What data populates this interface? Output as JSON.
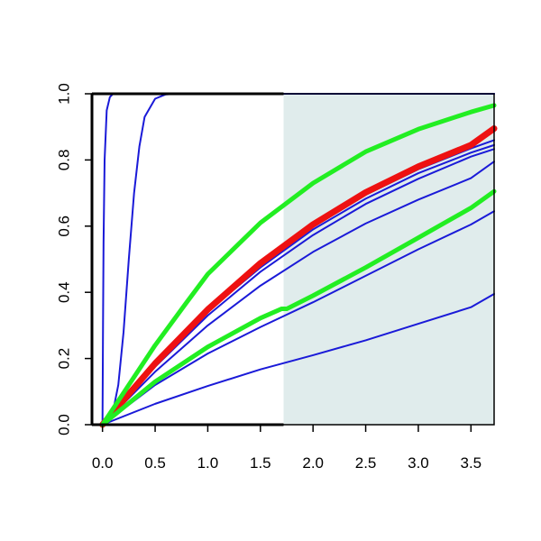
{
  "chart_data": {
    "type": "line",
    "title": "",
    "xlabel": "",
    "ylabel": "",
    "xlim": [
      -0.1,
      3.72
    ],
    "ylim": [
      0.0,
      1.0
    ],
    "x_ticks": [
      "0.0",
      "0.5",
      "1.0",
      "1.5",
      "2.0",
      "2.5",
      "3.0",
      "3.5"
    ],
    "x_tick_values": [
      0.0,
      0.5,
      1.0,
      1.5,
      2.0,
      2.5,
      3.0,
      3.5
    ],
    "y_ticks": [
      "0.0",
      "0.2",
      "0.4",
      "0.6",
      "0.8",
      "1.0"
    ],
    "y_tick_values": [
      0.0,
      0.2,
      0.4,
      0.6,
      0.8,
      1.0
    ],
    "grid": false,
    "shaded_region": {
      "x_start": 1.72,
      "x_end": 3.72,
      "color": "#e0ecec"
    },
    "colors": {
      "blue": "#1a1ad8",
      "red": "#ee1111",
      "green": "#22ee22",
      "axis": "#000000"
    },
    "series": [
      {
        "color": "blue",
        "x": [
          0,
          0.005,
          0.01,
          0.02,
          0.04,
          0.07,
          0.1,
          0.2,
          3.72
        ],
        "y": [
          0.0,
          0.3,
          0.55,
          0.8,
          0.95,
          0.99,
          1.0,
          1.0,
          1.0
        ]
      },
      {
        "color": "blue",
        "x": [
          0,
          0.05,
          0.1,
          0.15,
          0.2,
          0.25,
          0.3,
          0.35,
          0.4,
          0.5,
          0.6,
          0.7,
          3.72
        ],
        "y": [
          0.0,
          0.01,
          0.04,
          0.12,
          0.28,
          0.5,
          0.7,
          0.84,
          0.93,
          0.985,
          0.998,
          1.0,
          1.0
        ]
      },
      {
        "color": "blue",
        "x": [
          0,
          0.5,
          1.0,
          1.5,
          2.0,
          2.5,
          3.0,
          3.5,
          3.72
        ],
        "y": [
          0.0,
          0.182,
          0.343,
          0.475,
          0.59,
          0.683,
          0.76,
          0.822,
          0.845
        ]
      },
      {
        "color": "blue",
        "x": [
          0,
          0.5,
          1.0,
          1.5,
          2.0,
          2.5,
          3.0,
          3.5,
          3.72
        ],
        "y": [
          0.0,
          0.175,
          0.33,
          0.462,
          0.573,
          0.667,
          0.743,
          0.81,
          0.833
        ]
      },
      {
        "color": "blue",
        "x": [
          0,
          0.5,
          1.0,
          1.5,
          2.0,
          2.5,
          3.0,
          3.5,
          3.72
        ],
        "y": [
          0.0,
          0.186,
          0.35,
          0.485,
          0.6,
          0.695,
          0.772,
          0.835,
          0.86
        ]
      },
      {
        "color": "blue",
        "x": [
          0,
          0.5,
          1.0,
          1.5,
          2.0,
          2.5,
          3.0,
          3.5,
          3.72
        ],
        "y": [
          0.0,
          0.16,
          0.3,
          0.42,
          0.522,
          0.608,
          0.68,
          0.745,
          0.795
        ]
      },
      {
        "color": "blue",
        "x": [
          0,
          0.5,
          1.0,
          1.5,
          2.0,
          2.5,
          3.0,
          3.5,
          3.72
        ],
        "y": [
          0.0,
          0.12,
          0.215,
          0.295,
          0.37,
          0.45,
          0.53,
          0.605,
          0.645
        ]
      },
      {
        "color": "blue",
        "x": [
          0,
          0.5,
          1.0,
          1.5,
          2.0,
          2.5,
          3.0,
          3.5,
          3.72
        ],
        "y": [
          0.0,
          0.063,
          0.117,
          0.167,
          0.21,
          0.255,
          0.305,
          0.355,
          0.395
        ]
      },
      {
        "color": "red",
        "x": [
          0,
          0.5,
          1.0,
          1.5,
          2.0,
          2.5,
          3.0,
          3.5,
          3.72
        ],
        "y": [
          0.0,
          0.185,
          0.348,
          0.488,
          0.605,
          0.702,
          0.78,
          0.845,
          0.895
        ]
      },
      {
        "color": "green",
        "x": [
          0,
          0.5,
          0.8,
          1.0,
          1.5,
          2.0,
          2.5,
          3.0,
          3.5,
          3.72
        ],
        "y": [
          0.0,
          0.24,
          0.37,
          0.455,
          0.61,
          0.73,
          0.825,
          0.893,
          0.945,
          0.965
        ]
      },
      {
        "color": "green",
        "x": [
          0,
          0.5,
          1.0,
          1.5,
          1.7,
          1.75,
          2.0,
          2.5,
          3.0,
          3.5,
          3.72
        ],
        "y": [
          0.0,
          0.13,
          0.235,
          0.322,
          0.35,
          0.35,
          0.39,
          0.475,
          0.565,
          0.655,
          0.705
        ]
      }
    ]
  }
}
